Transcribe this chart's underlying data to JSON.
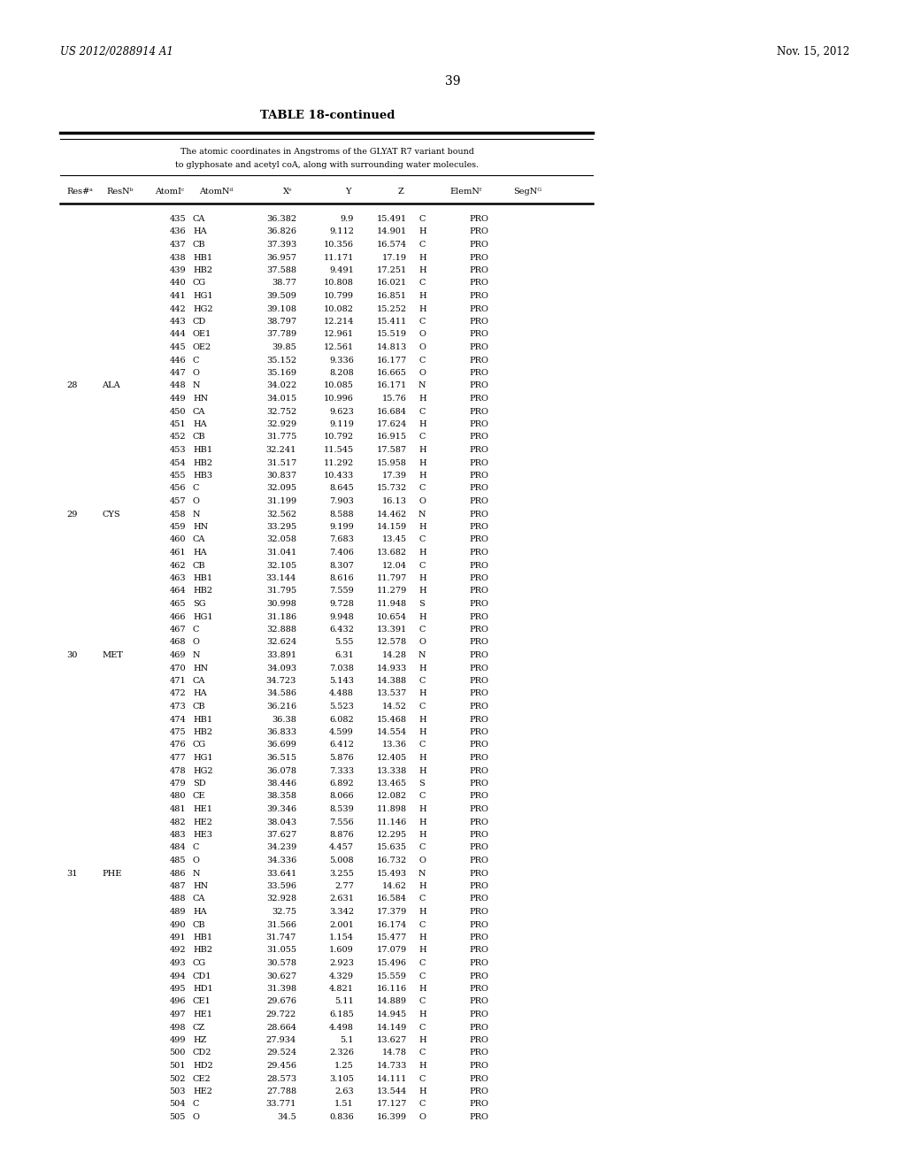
{
  "header_left": "US 2012/0288914 A1",
  "header_right": "Nov. 15, 2012",
  "page_number": "39",
  "table_title": "TABLE 18-continued",
  "table_subtitle_1": "The atomic coordinates in Angstroms of the GLYAT R7 variant bound",
  "table_subtitle_2": "to glyphosate and acetyl coA, along with surrounding water molecules.",
  "col_headers": [
    "Res#ᵃ",
    "ResNᵇ",
    "AtomIᶜ",
    "AtomNᵈ",
    "Xᵉ",
    "Y",
    "Z",
    "ElemNᶠ",
    "SegNᴳ"
  ],
  "rows": [
    [
      "",
      "",
      "435",
      "CA",
      "36.382",
      "9.9",
      "15.491",
      "C",
      "PRO"
    ],
    [
      "",
      "",
      "436",
      "HA",
      "36.826",
      "9.112",
      "14.901",
      "H",
      "PRO"
    ],
    [
      "",
      "",
      "437",
      "CB",
      "37.393",
      "10.356",
      "16.574",
      "C",
      "PRO"
    ],
    [
      "",
      "",
      "438",
      "HB1",
      "36.957",
      "11.171",
      "17.19",
      "H",
      "PRO"
    ],
    [
      "",
      "",
      "439",
      "HB2",
      "37.588",
      "9.491",
      "17.251",
      "H",
      "PRO"
    ],
    [
      "",
      "",
      "440",
      "CG",
      "38.77",
      "10.808",
      "16.021",
      "C",
      "PRO"
    ],
    [
      "",
      "",
      "441",
      "HG1",
      "39.509",
      "10.799",
      "16.851",
      "H",
      "PRO"
    ],
    [
      "",
      "",
      "442",
      "HG2",
      "39.108",
      "10.082",
      "15.252",
      "H",
      "PRO"
    ],
    [
      "",
      "",
      "443",
      "CD",
      "38.797",
      "12.214",
      "15.411",
      "C",
      "PRO"
    ],
    [
      "",
      "",
      "444",
      "OE1",
      "37.789",
      "12.961",
      "15.519",
      "O",
      "PRO"
    ],
    [
      "",
      "",
      "445",
      "OE2",
      "39.85",
      "12.561",
      "14.813",
      "O",
      "PRO"
    ],
    [
      "",
      "",
      "446",
      "C",
      "35.152",
      "9.336",
      "16.177",
      "C",
      "PRO"
    ],
    [
      "",
      "",
      "447",
      "O",
      "35.169",
      "8.208",
      "16.665",
      "O",
      "PRO"
    ],
    [
      "28",
      "ALA",
      "448",
      "N",
      "34.022",
      "10.085",
      "16.171",
      "N",
      "PRO"
    ],
    [
      "",
      "",
      "449",
      "HN",
      "34.015",
      "10.996",
      "15.76",
      "H",
      "PRO"
    ],
    [
      "",
      "",
      "450",
      "CA",
      "32.752",
      "9.623",
      "16.684",
      "C",
      "PRO"
    ],
    [
      "",
      "",
      "451",
      "HA",
      "32.929",
      "9.119",
      "17.624",
      "H",
      "PRO"
    ],
    [
      "",
      "",
      "452",
      "CB",
      "31.775",
      "10.792",
      "16.915",
      "C",
      "PRO"
    ],
    [
      "",
      "",
      "453",
      "HB1",
      "32.241",
      "11.545",
      "17.587",
      "H",
      "PRO"
    ],
    [
      "",
      "",
      "454",
      "HB2",
      "31.517",
      "11.292",
      "15.958",
      "H",
      "PRO"
    ],
    [
      "",
      "",
      "455",
      "HB3",
      "30.837",
      "10.433",
      "17.39",
      "H",
      "PRO"
    ],
    [
      "",
      "",
      "456",
      "C",
      "32.095",
      "8.645",
      "15.732",
      "C",
      "PRO"
    ],
    [
      "",
      "",
      "457",
      "O",
      "31.199",
      "7.903",
      "16.13",
      "O",
      "PRO"
    ],
    [
      "29",
      "CYS",
      "458",
      "N",
      "32.562",
      "8.588",
      "14.462",
      "N",
      "PRO"
    ],
    [
      "",
      "",
      "459",
      "HN",
      "33.295",
      "9.199",
      "14.159",
      "H",
      "PRO"
    ],
    [
      "",
      "",
      "460",
      "CA",
      "32.058",
      "7.683",
      "13.45",
      "C",
      "PRO"
    ],
    [
      "",
      "",
      "461",
      "HA",
      "31.041",
      "7.406",
      "13.682",
      "H",
      "PRO"
    ],
    [
      "",
      "",
      "462",
      "CB",
      "32.105",
      "8.307",
      "12.04",
      "C",
      "PRO"
    ],
    [
      "",
      "",
      "463",
      "HB1",
      "33.144",
      "8.616",
      "11.797",
      "H",
      "PRO"
    ],
    [
      "",
      "",
      "464",
      "HB2",
      "31.795",
      "7.559",
      "11.279",
      "H",
      "PRO"
    ],
    [
      "",
      "",
      "465",
      "SG",
      "30.998",
      "9.728",
      "11.948",
      "S",
      "PRO"
    ],
    [
      "",
      "",
      "466",
      "HG1",
      "31.186",
      "9.948",
      "10.654",
      "H",
      "PRO"
    ],
    [
      "",
      "",
      "467",
      "C",
      "32.888",
      "6.432",
      "13.391",
      "C",
      "PRO"
    ],
    [
      "",
      "",
      "468",
      "O",
      "32.624",
      "5.55",
      "12.578",
      "O",
      "PRO"
    ],
    [
      "30",
      "MET",
      "469",
      "N",
      "33.891",
      "6.31",
      "14.28",
      "N",
      "PRO"
    ],
    [
      "",
      "",
      "470",
      "HN",
      "34.093",
      "7.038",
      "14.933",
      "H",
      "PRO"
    ],
    [
      "",
      "",
      "471",
      "CA",
      "34.723",
      "5.143",
      "14.388",
      "C",
      "PRO"
    ],
    [
      "",
      "",
      "472",
      "HA",
      "34.586",
      "4.488",
      "13.537",
      "H",
      "PRO"
    ],
    [
      "",
      "",
      "473",
      "CB",
      "36.216",
      "5.523",
      "14.52",
      "C",
      "PRO"
    ],
    [
      "",
      "",
      "474",
      "HB1",
      "36.38",
      "6.082",
      "15.468",
      "H",
      "PRO"
    ],
    [
      "",
      "",
      "475",
      "HB2",
      "36.833",
      "4.599",
      "14.554",
      "H",
      "PRO"
    ],
    [
      "",
      "",
      "476",
      "CG",
      "36.699",
      "6.412",
      "13.36",
      "C",
      "PRO"
    ],
    [
      "",
      "",
      "477",
      "HG1",
      "36.515",
      "5.876",
      "12.405",
      "H",
      "PRO"
    ],
    [
      "",
      "",
      "478",
      "HG2",
      "36.078",
      "7.333",
      "13.338",
      "H",
      "PRO"
    ],
    [
      "",
      "",
      "479",
      "SD",
      "38.446",
      "6.892",
      "13.465",
      "S",
      "PRO"
    ],
    [
      "",
      "",
      "480",
      "CE",
      "38.358",
      "8.066",
      "12.082",
      "C",
      "PRO"
    ],
    [
      "",
      "",
      "481",
      "HE1",
      "39.346",
      "8.539",
      "11.898",
      "H",
      "PRO"
    ],
    [
      "",
      "",
      "482",
      "HE2",
      "38.043",
      "7.556",
      "11.146",
      "H",
      "PRO"
    ],
    [
      "",
      "",
      "483",
      "HE3",
      "37.627",
      "8.876",
      "12.295",
      "H",
      "PRO"
    ],
    [
      "",
      "",
      "484",
      "C",
      "34.239",
      "4.457",
      "15.635",
      "C",
      "PRO"
    ],
    [
      "",
      "",
      "485",
      "O",
      "34.336",
      "5.008",
      "16.732",
      "O",
      "PRO"
    ],
    [
      "31",
      "PHE",
      "486",
      "N",
      "33.641",
      "3.255",
      "15.493",
      "N",
      "PRO"
    ],
    [
      "",
      "",
      "487",
      "HN",
      "33.596",
      "2.77",
      "14.62",
      "H",
      "PRO"
    ],
    [
      "",
      "",
      "488",
      "CA",
      "32.928",
      "2.631",
      "16.584",
      "C",
      "PRO"
    ],
    [
      "",
      "",
      "489",
      "HA",
      "32.75",
      "3.342",
      "17.379",
      "H",
      "PRO"
    ],
    [
      "",
      "",
      "490",
      "CB",
      "31.566",
      "2.001",
      "16.174",
      "C",
      "PRO"
    ],
    [
      "",
      "",
      "491",
      "HB1",
      "31.747",
      "1.154",
      "15.477",
      "H",
      "PRO"
    ],
    [
      "",
      "",
      "492",
      "HB2",
      "31.055",
      "1.609",
      "17.079",
      "H",
      "PRO"
    ],
    [
      "",
      "",
      "493",
      "CG",
      "30.578",
      "2.923",
      "15.496",
      "C",
      "PRO"
    ],
    [
      "",
      "",
      "494",
      "CD1",
      "30.627",
      "4.329",
      "15.559",
      "C",
      "PRO"
    ],
    [
      "",
      "",
      "495",
      "HD1",
      "31.398",
      "4.821",
      "16.116",
      "H",
      "PRO"
    ],
    [
      "",
      "",
      "496",
      "CE1",
      "29.676",
      "5.11",
      "14.889",
      "C",
      "PRO"
    ],
    [
      "",
      "",
      "497",
      "HE1",
      "29.722",
      "6.185",
      "14.945",
      "H",
      "PRO"
    ],
    [
      "",
      "",
      "498",
      "CZ",
      "28.664",
      "4.498",
      "14.149",
      "C",
      "PRO"
    ],
    [
      "",
      "",
      "499",
      "HZ",
      "27.934",
      "5.1",
      "13.627",
      "H",
      "PRO"
    ],
    [
      "",
      "",
      "500",
      "CD2",
      "29.524",
      "2.326",
      "14.78",
      "C",
      "PRO"
    ],
    [
      "",
      "",
      "501",
      "HD2",
      "29.456",
      "1.25",
      "14.733",
      "H",
      "PRO"
    ],
    [
      "",
      "",
      "502",
      "CE2",
      "28.573",
      "3.105",
      "14.111",
      "C",
      "PRO"
    ],
    [
      "",
      "",
      "503",
      "HE2",
      "27.788",
      "2.63",
      "13.544",
      "H",
      "PRO"
    ],
    [
      "",
      "",
      "504",
      "C",
      "33.771",
      "1.51",
      "17.127",
      "C",
      "PRO"
    ],
    [
      "",
      "",
      "505",
      "O",
      "34.5",
      "0.836",
      "16.399",
      "O",
      "PRO"
    ]
  ],
  "bg_color": "#ffffff",
  "font_size": 7.0,
  "header_font_size": 8.5,
  "title_font_size": 9.5,
  "page_num_font_size": 10.0
}
